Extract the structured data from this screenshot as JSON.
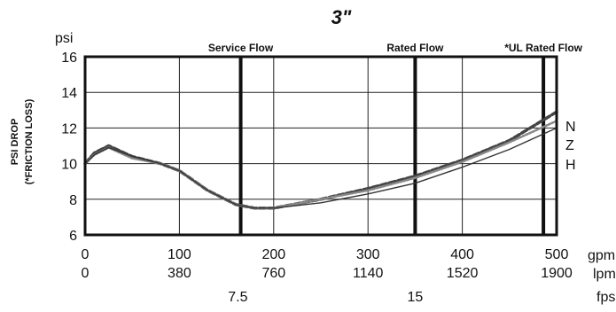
{
  "chart_data": {
    "type": "line",
    "title": "3\"",
    "ylabel_lines": [
      "PSI DROP",
      "(*FRICTION LOSS)"
    ],
    "y_unit": "psi",
    "ylim": [
      6,
      16
    ],
    "y_ticks": [
      6,
      8,
      10,
      12,
      14,
      16
    ],
    "x_unit": "gpm",
    "xlim": [
      0,
      500
    ],
    "x_ticks": [
      0,
      100,
      200,
      300,
      400,
      500
    ],
    "secondary_axes": [
      {
        "unit": "lpm",
        "ticks": [
          {
            "x": 0,
            "label": "0"
          },
          {
            "x": 100,
            "label": "380"
          },
          {
            "x": 200,
            "label": "760"
          },
          {
            "x": 300,
            "label": "1140"
          },
          {
            "x": 400,
            "label": "1520"
          },
          {
            "x": 500,
            "label": "1900"
          }
        ]
      },
      {
        "unit": "fps",
        "ticks": [
          {
            "x": 162,
            "label": "7.5"
          },
          {
            "x": 350,
            "label": "15"
          }
        ]
      }
    ],
    "grid": true,
    "reference_lines": [
      {
        "label": "Service Flow",
        "x": 165
      },
      {
        "label": "Rated Flow",
        "x": 350
      },
      {
        "label": "*UL Rated Flow",
        "x": 486
      }
    ],
    "series": [
      {
        "name": "N",
        "style": "dashed",
        "points": [
          [
            0,
            10
          ],
          [
            10,
            10.6
          ],
          [
            25,
            11
          ],
          [
            50,
            10.4
          ],
          [
            80,
            10
          ],
          [
            100,
            9.6
          ],
          [
            130,
            8.5
          ],
          [
            160,
            7.7
          ],
          [
            180,
            7.5
          ],
          [
            200,
            7.5
          ],
          [
            250,
            8
          ],
          [
            300,
            8.6
          ],
          [
            350,
            9.3
          ],
          [
            400,
            10.2
          ],
          [
            450,
            11.3
          ],
          [
            500,
            12.9
          ]
        ]
      },
      {
        "name": "Z",
        "style": "dotted",
        "points": [
          [
            0,
            10
          ],
          [
            10,
            10.5
          ],
          [
            25,
            10.9
          ],
          [
            50,
            10.3
          ],
          [
            80,
            10
          ],
          [
            100,
            9.6
          ],
          [
            130,
            8.5
          ],
          [
            160,
            7.7
          ],
          [
            180,
            7.5
          ],
          [
            200,
            7.5
          ],
          [
            250,
            8
          ],
          [
            300,
            8.5
          ],
          [
            350,
            9.2
          ],
          [
            400,
            10.1
          ],
          [
            450,
            11.2
          ],
          [
            500,
            12.4
          ]
        ]
      },
      {
        "name": "H",
        "style": "solid",
        "points": [
          [
            0,
            10
          ],
          [
            10,
            10.5
          ],
          [
            25,
            10.9
          ],
          [
            50,
            10.4
          ],
          [
            80,
            10
          ],
          [
            100,
            9.6
          ],
          [
            130,
            8.5
          ],
          [
            160,
            7.7
          ],
          [
            180,
            7.5
          ],
          [
            200,
            7.5
          ],
          [
            250,
            7.8
          ],
          [
            300,
            8.3
          ],
          [
            350,
            8.9
          ],
          [
            400,
            9.8
          ],
          [
            450,
            10.8
          ],
          [
            500,
            12
          ]
        ]
      }
    ]
  }
}
